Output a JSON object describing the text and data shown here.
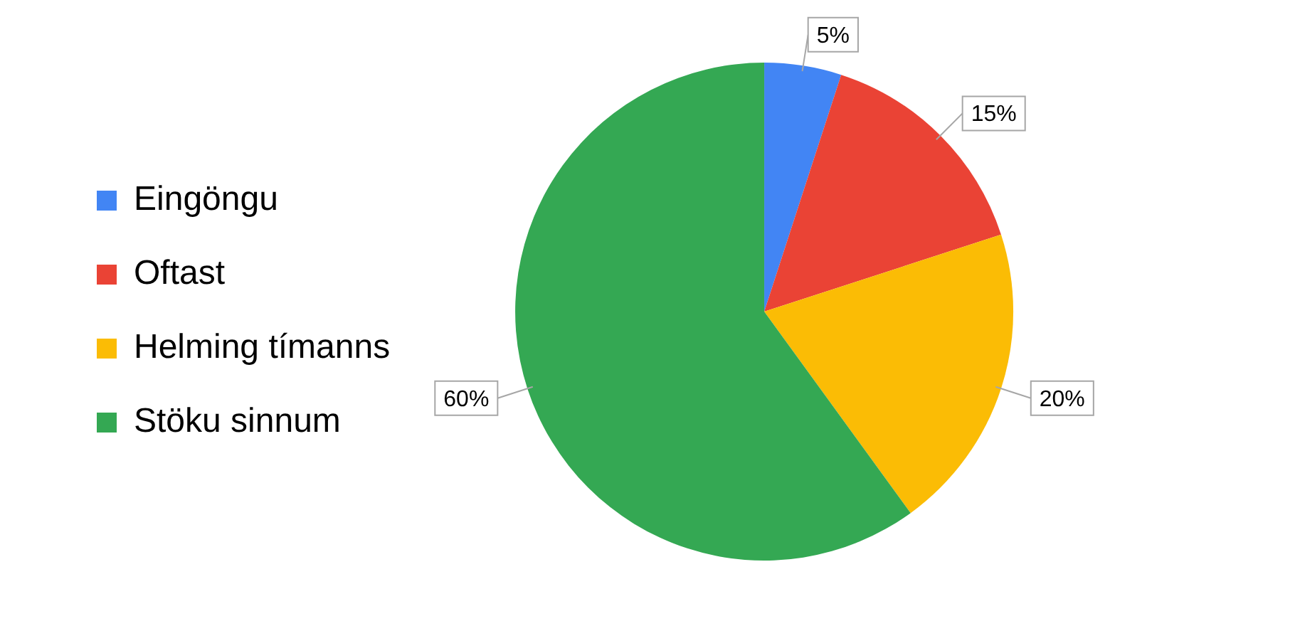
{
  "chart_data": {
    "type": "pie",
    "categories": [
      "Eingöngu",
      "Oftast",
      "Helming tímanns",
      "Stöku sinnum"
    ],
    "values": [
      5,
      15,
      20,
      60
    ],
    "colors": [
      "#4285f4",
      "#ea4335",
      "#fbbc05",
      "#34a853"
    ],
    "value_labels": [
      "5%",
      "15%",
      "20%",
      "60%"
    ],
    "legend": "left"
  }
}
